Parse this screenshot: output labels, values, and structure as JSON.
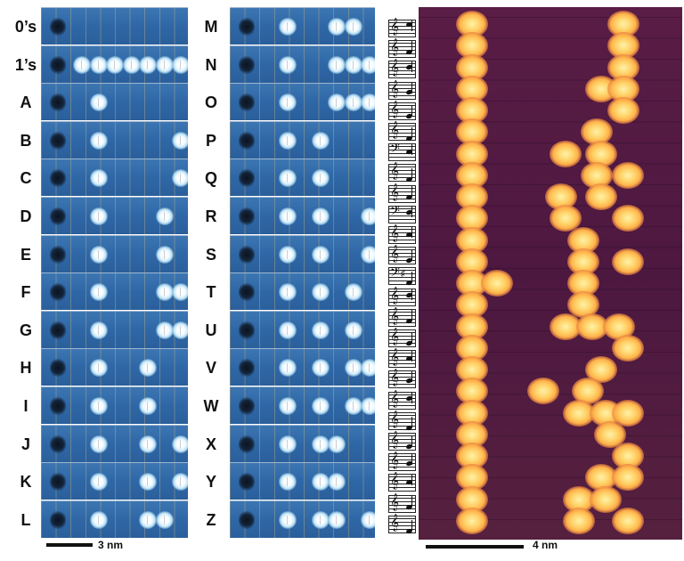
{
  "left_panel": {
    "labels": [
      "0’s",
      "1’s",
      "A",
      "B",
      "C",
      "D",
      "E",
      "F",
      "G",
      "H",
      "I",
      "J",
      "K",
      "L"
    ],
    "atom_slots": [
      [],
      [
        1,
        2,
        3,
        4,
        5,
        6,
        7,
        8
      ],
      [
        2,
        8
      ],
      [
        2,
        7
      ],
      [
        2,
        7,
        8
      ],
      [
        2,
        6
      ],
      [
        2,
        6,
        8
      ],
      [
        2,
        6,
        7
      ],
      [
        2,
        6,
        7,
        8
      ],
      [
        2,
        5
      ],
      [
        2,
        5,
        8
      ],
      [
        2,
        5,
        7
      ],
      [
        2,
        5,
        7,
        8
      ],
      [
        2,
        5,
        6
      ]
    ]
  },
  "middle_panel": {
    "labels": [
      "M",
      "N",
      "O",
      "P",
      "Q",
      "R",
      "S",
      "T",
      "U",
      "V",
      "W",
      "X",
      "Y",
      "Z"
    ],
    "atom_slots": [
      [
        2,
        5,
        6,
        8
      ],
      [
        2,
        5,
        6,
        7
      ],
      [
        2,
        5,
        6,
        7,
        8
      ],
      [
        2,
        4
      ],
      [
        2,
        4,
        8
      ],
      [
        2,
        4,
        7
      ],
      [
        2,
        4,
        7,
        8
      ],
      [
        2,
        4,
        6
      ],
      [
        2,
        4,
        6,
        8
      ],
      [
        2,
        4,
        6,
        7
      ],
      [
        2,
        4,
        6,
        7,
        8
      ],
      [
        2,
        4,
        5
      ],
      [
        2,
        4,
        5,
        8
      ],
      [
        2,
        4,
        5,
        7
      ]
    ]
  },
  "scale_left": "3 nm",
  "scale_right": "4 nm",
  "notes": [
    {
      "clef": "treble",
      "acc": ""
    },
    {
      "clef": "treble",
      "acc": ""
    },
    {
      "clef": "treble",
      "acc": ""
    },
    {
      "clef": "treble",
      "acc": ""
    },
    {
      "clef": "treble",
      "acc": ""
    },
    {
      "clef": "treble",
      "acc": ""
    },
    {
      "clef": "bass",
      "acc": ""
    },
    {
      "clef": "treble",
      "acc": ""
    },
    {
      "clef": "treble",
      "acc": ""
    },
    {
      "clef": "bass",
      "acc": ""
    },
    {
      "clef": "treble",
      "acc": ""
    },
    {
      "clef": "treble",
      "acc": ""
    },
    {
      "clef": "bass",
      "acc": "♯"
    },
    {
      "clef": "treble",
      "acc": ""
    },
    {
      "clef": "treble",
      "acc": ""
    },
    {
      "clef": "treble",
      "acc": ""
    },
    {
      "clef": "treble",
      "acc": ""
    },
    {
      "clef": "treble",
      "acc": ""
    },
    {
      "clef": "treble",
      "acc": ""
    },
    {
      "clef": "treble",
      "acc": ""
    },
    {
      "clef": "treble",
      "acc": ""
    },
    {
      "clef": "treble",
      "acc": ""
    },
    {
      "clef": "treble",
      "acc": ""
    },
    {
      "clef": "treble",
      "acc": ""
    },
    {
      "clef": "treble",
      "acc": ""
    }
  ],
  "colors": {
    "stm_blue": "#2f67a6",
    "molecule_bg": "#4d1840",
    "molecule_blob": "#ffc35a"
  }
}
